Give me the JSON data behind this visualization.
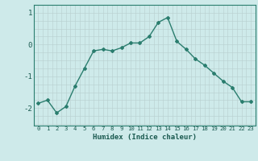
{
  "x": [
    0,
    1,
    2,
    3,
    4,
    5,
    6,
    7,
    8,
    9,
    10,
    11,
    12,
    13,
    14,
    15,
    16,
    17,
    18,
    19,
    20,
    21,
    22,
    23
  ],
  "y": [
    -1.85,
    -1.75,
    -2.15,
    -1.95,
    -1.3,
    -0.75,
    -0.2,
    -0.15,
    -0.2,
    -0.1,
    0.05,
    0.05,
    0.25,
    0.7,
    0.85,
    0.1,
    -0.15,
    -0.45,
    -0.65,
    -0.9,
    -1.15,
    -1.35,
    -1.8,
    -1.8
  ],
  "xlabel": "Humidex (Indice chaleur)",
  "xtick_labels": [
    "0",
    "1",
    "2",
    "3",
    "4",
    "5",
    "6",
    "7",
    "8",
    "9",
    "10",
    "11",
    "12",
    "13",
    "14",
    "15",
    "16",
    "17",
    "18",
    "19",
    "20",
    "21",
    "22",
    "23"
  ],
  "ytick_labels": [
    "-2",
    "-1",
    "0",
    "1"
  ],
  "ytick_vals": [
    -2,
    -1,
    0,
    1
  ],
  "ylim": [
    -2.55,
    1.25
  ],
  "xlim": [
    -0.5,
    23.5
  ],
  "line_color": "#2a7d6e",
  "marker": "D",
  "markersize": 2.0,
  "linewidth": 1.0,
  "bg_color": "#ceeaea",
  "grid_color": "#b8cece"
}
